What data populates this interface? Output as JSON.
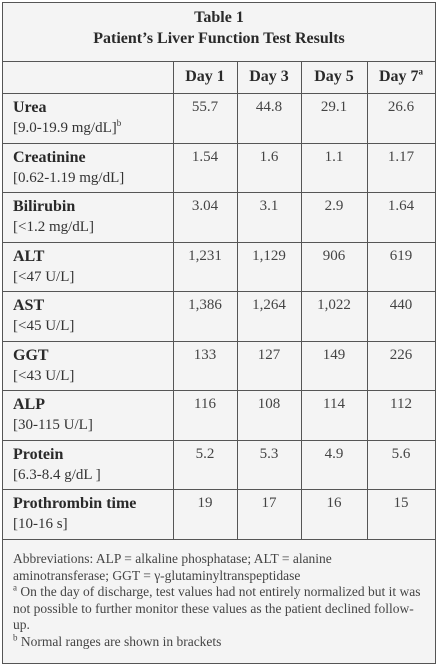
{
  "table": {
    "number": "Table 1",
    "title": "Patient’s Liver Function Test Results",
    "columns": [
      "Day 1",
      "Day 3",
      "Day 5",
      "Day 7"
    ],
    "last_column_footnote_mark": "a",
    "rows": [
      {
        "name": "Urea",
        "range": "[9.0-19.9 mg/dL]",
        "range_mark": "b",
        "values": [
          "55.7",
          "44.8",
          "29.1",
          "26.6"
        ]
      },
      {
        "name": "Creatinine",
        "range": "[0.62-1.19 mg/dL]",
        "range_mark": "",
        "values": [
          "1.54",
          "1.6",
          "1.1",
          "1.17"
        ]
      },
      {
        "name": "Bilirubin",
        "range": "[<1.2 mg/dL]",
        "range_mark": "",
        "values": [
          "3.04",
          "3.1",
          "2.9",
          "1.64"
        ]
      },
      {
        "name": "ALT",
        "range": "[<47 U/L]",
        "range_mark": "",
        "values": [
          "1,231",
          "1,129",
          "906",
          "619"
        ]
      },
      {
        "name": "AST",
        "range": "[<45 U/L]",
        "range_mark": "",
        "values": [
          "1,386",
          "1,264",
          "1,022",
          "440"
        ]
      },
      {
        "name": "GGT",
        "range": "[<43 U/L]",
        "range_mark": "",
        "values": [
          "133",
          "127",
          "149",
          "226"
        ]
      },
      {
        "name": "ALP",
        "range": "[30-115 U/L]",
        "range_mark": "",
        "values": [
          "116",
          "108",
          "114",
          "112"
        ]
      },
      {
        "name": "Protein",
        "range": "[6.3-8.4 g/dL ]",
        "range_mark": "",
        "values": [
          "5.2",
          "5.3",
          "4.9",
          "5.6"
        ]
      },
      {
        "name": "Prothrombin time",
        "range": "[10-16 s]",
        "range_mark": "",
        "values": [
          "19",
          "17",
          "16",
          "15"
        ]
      }
    ]
  },
  "footnotes": {
    "abbreviations": "Abbreviations: ALP = alkaline phosphatase; ALT = alanine aminotransferase; GGT = γ-glutaminyltranspeptidase",
    "note_a_mark": "a",
    "note_a": "On the day of discharge, test values had not entirely normalized but it was not possible to further monitor these values as the patient declined follow-up.",
    "note_b_mark": "b",
    "note_b": "Normal ranges are shown in brackets"
  }
}
